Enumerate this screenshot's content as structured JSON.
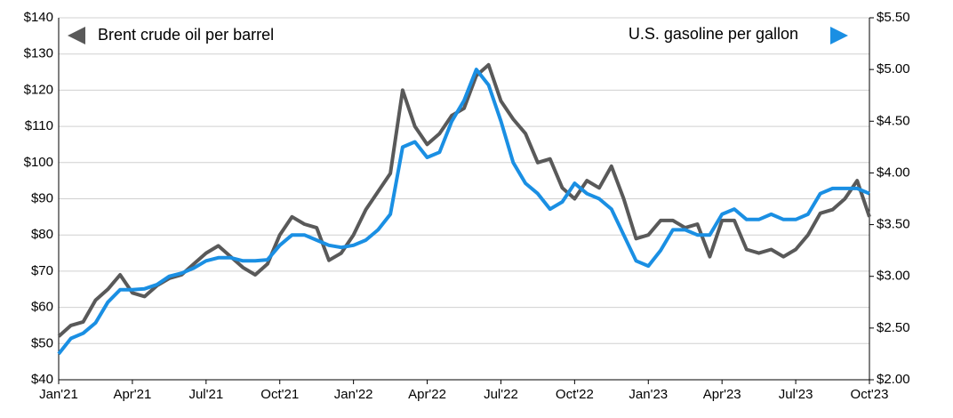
{
  "chart_data": {
    "type": "line",
    "categories": [
      "Jan'21",
      null,
      null,
      null,
      null,
      null,
      "Apr'21",
      null,
      null,
      null,
      null,
      null,
      "Jul'21",
      null,
      null,
      null,
      null,
      null,
      "Oct'21",
      null,
      null,
      null,
      null,
      null,
      "Jan'22",
      null,
      null,
      null,
      null,
      null,
      "Apr'22",
      null,
      null,
      null,
      null,
      null,
      "Jul'22",
      null,
      null,
      null,
      null,
      null,
      "Oct'22",
      null,
      null,
      null,
      null,
      null,
      "Jan'23",
      null,
      null,
      null,
      null,
      null,
      "Apr'23",
      null,
      null,
      null,
      null,
      null,
      "Jul'23",
      null,
      null,
      null,
      null,
      null,
      "Oct'23"
    ],
    "series": [
      {
        "name": "Brent crude oil per barrel",
        "color": "#595959",
        "values": [
          52,
          55,
          56,
          62,
          65,
          69,
          64,
          63,
          66,
          68,
          69,
          72,
          75,
          77,
          74,
          71,
          69,
          72,
          80,
          85,
          83,
          82,
          73,
          75,
          80,
          87,
          92,
          97,
          120,
          110,
          105,
          108,
          113,
          115,
          124,
          127,
          117,
          112,
          108,
          100,
          101,
          93,
          90,
          95,
          93,
          99,
          90,
          79,
          80,
          84,
          84,
          82,
          83,
          74,
          84,
          84,
          76,
          75,
          76,
          74,
          76,
          80,
          86,
          87,
          90,
          95,
          85
        ]
      },
      {
        "name": "U.S. gasoline per gallon",
        "color": "#1a8fe3",
        "axis": "y2",
        "values": [
          2.25,
          2.4,
          2.45,
          2.55,
          2.75,
          2.87,
          2.87,
          2.88,
          2.92,
          3.0,
          3.03,
          3.08,
          3.15,
          3.18,
          3.18,
          3.15,
          3.15,
          3.16,
          3.3,
          3.4,
          3.4,
          3.35,
          3.3,
          3.28,
          3.3,
          3.35,
          3.45,
          3.6,
          4.25,
          4.3,
          4.15,
          4.2,
          4.5,
          4.7,
          5.0,
          4.85,
          4.5,
          4.1,
          3.9,
          3.8,
          3.65,
          3.72,
          3.9,
          3.8,
          3.75,
          3.65,
          3.4,
          3.15,
          3.1,
          3.25,
          3.45,
          3.45,
          3.4,
          3.4,
          3.6,
          3.65,
          3.55,
          3.55,
          3.6,
          3.55,
          3.55,
          3.6,
          3.8,
          3.85,
          3.85,
          3.85,
          3.8
        ]
      }
    ],
    "ylim": [
      40,
      140
    ],
    "yticks": [
      {
        "value": 40,
        "label": "$40"
      },
      {
        "value": 50,
        "label": "$50"
      },
      {
        "value": 60,
        "label": "$60"
      },
      {
        "value": 70,
        "label": "$70"
      },
      {
        "value": 80,
        "label": "$80"
      },
      {
        "value": 90,
        "label": "$90"
      },
      {
        "value": 100,
        "label": "$100"
      },
      {
        "value": 110,
        "label": "$110"
      },
      {
        "value": 120,
        "label": "$120"
      },
      {
        "value": 130,
        "label": "$130"
      },
      {
        "value": 140,
        "label": "$140"
      }
    ],
    "y2lim": [
      2.0,
      5.5
    ],
    "y2ticks": [
      {
        "value": 2.0,
        "label": "$2.00"
      },
      {
        "value": 2.5,
        "label": "$2.50"
      },
      {
        "value": 3.0,
        "label": "$3.00"
      },
      {
        "value": 3.5,
        "label": "$3.50"
      },
      {
        "value": 4.0,
        "label": "$4.00"
      },
      {
        "value": 4.5,
        "label": "$4.50"
      },
      {
        "value": 5.0,
        "label": "$5.00"
      },
      {
        "value": 5.5,
        "label": "$5.50"
      }
    ],
    "grid": true
  }
}
